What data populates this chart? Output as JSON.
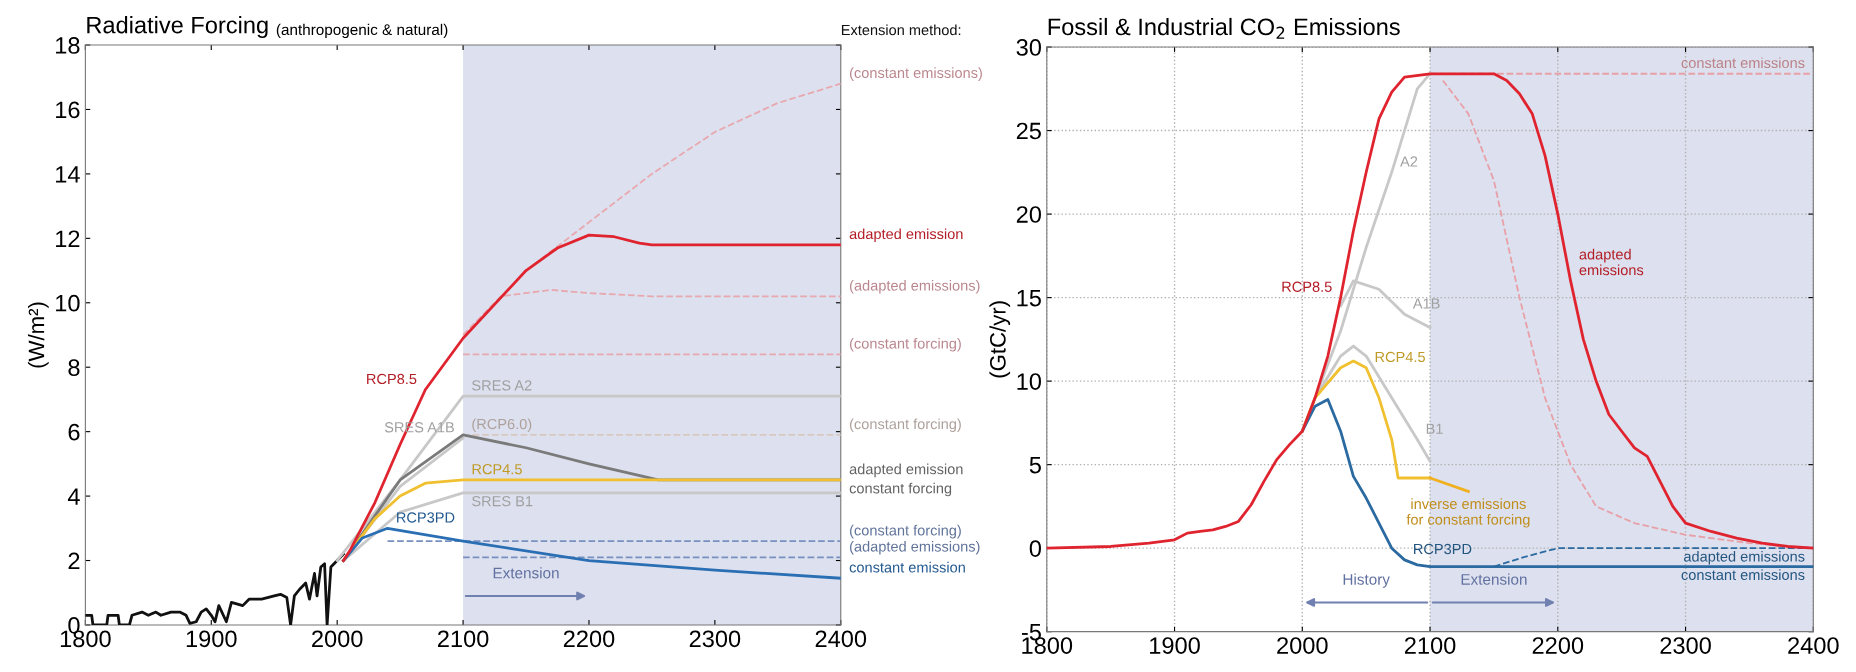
{
  "chart_data": [
    {
      "type": "line",
      "title": "Radiative Forcing",
      "subtitle": "(anthropogenic & natural)",
      "ylabel": "(W/m²)",
      "xlim": [
        1800,
        2400
      ],
      "ylim": [
        0,
        18
      ],
      "xticks": [
        1800,
        1900,
        2000,
        2100,
        2200,
        2300,
        2400
      ],
      "yticks": [
        0,
        2,
        4,
        6,
        8,
        10,
        12,
        14,
        16,
        18
      ],
      "grid": false,
      "bands": [
        {
          "axis": "x",
          "from": 2100,
          "to": 2400,
          "color": "#dde0ee",
          "label": "Extension"
        }
      ],
      "series": [
        {
          "color": "#111111",
          "x": [
            1800,
            1805,
            1806,
            1817,
            1818,
            1826,
            1827,
            1835,
            1837,
            1845,
            1850,
            1856,
            1860,
            1868,
            1875,
            1880,
            1883,
            1888,
            1892,
            1896,
            1900,
            1903,
            1906,
            1912,
            1916,
            1925,
            1930,
            1940,
            1950,
            1955,
            1960,
            1963,
            1966,
            1970,
            1975,
            1978,
            1982,
            1984,
            1987,
            1990,
            1992,
            1995,
            2000,
            2005
          ],
          "values": [
            0.3,
            0.3,
            0,
            0,
            0.3,
            0.3,
            0,
            0,
            0.3,
            0.4,
            0.3,
            0.4,
            0.3,
            0.4,
            0.4,
            0.3,
            0.05,
            0.1,
            0.4,
            0.5,
            0.3,
            0.1,
            0.6,
            0.1,
            0.7,
            0.6,
            0.8,
            0.8,
            0.9,
            0.95,
            0.85,
            0.0,
            0.9,
            1.1,
            1.3,
            0.8,
            1.6,
            0.9,
            1.8,
            1.9,
            0.0,
            1.8,
            2.0,
            2.2
          ]
        },
        {
          "color": "#e8a8b0",
          "line_style": "dashed",
          "x": [
            2150,
            2200,
            2250,
            2300,
            2350,
            2400
          ],
          "values": [
            11.0,
            12.5,
            14.0,
            15.3,
            16.2,
            16.8
          ]
        },
        {
          "color": "#e8a8b0",
          "line_style": "dashed",
          "x": [
            2100,
            2130,
            2170,
            2200,
            2250,
            2400
          ],
          "values": [
            9.0,
            10.2,
            10.4,
            10.3,
            10.2,
            10.2
          ]
        },
        {
          "color": "#e8a8b0",
          "line_style": "dashed",
          "x": [
            2100,
            2400
          ],
          "values": [
            8.4,
            8.4
          ]
        },
        {
          "color": "#c8c8c8",
          "x": [
            2000,
            2050,
            2100,
            2400
          ],
          "values": [
            2.0,
            4.5,
            7.1,
            7.1
          ]
        },
        {
          "color": "#d8c8c0",
          "line_style": "dashed",
          "x": [
            2100,
            2400
          ],
          "values": [
            5.9,
            5.9
          ]
        },
        {
          "color": "#c8c8c8",
          "x": [
            2005,
            2050,
            2100
          ],
          "values": [
            2.0,
            4.3,
            5.8
          ]
        },
        {
          "color": "#c8c8c8",
          "x": [
            2005,
            2050,
            2100,
            2400
          ],
          "values": [
            2.0,
            3.5,
            4.1,
            4.1
          ]
        },
        {
          "color": "#7a7a7a",
          "x": [
            2005,
            2050,
            2100,
            2150,
            2200,
            2255,
            2400
          ],
          "values": [
            2.0,
            4.5,
            5.9,
            5.5,
            5.0,
            4.5,
            4.5
          ]
        },
        {
          "color": "#f0c030",
          "x": [
            2005,
            2030,
            2050,
            2070,
            2100,
            2400
          ],
          "values": [
            2.0,
            3.3,
            4.0,
            4.4,
            4.5,
            4.5
          ]
        },
        {
          "color": "#7890c0",
          "line_style": "dashed",
          "x": [
            2040,
            2400
          ],
          "values": [
            2.6,
            2.6
          ]
        },
        {
          "color": "#7890c0",
          "line_style": "dashed",
          "x": [
            2100,
            2400
          ],
          "values": [
            2.1,
            2.1
          ]
        },
        {
          "color": "#2a6fb4",
          "x": [
            2005,
            2020,
            2040,
            2100,
            2200,
            2300,
            2400
          ],
          "values": [
            2.0,
            2.7,
            3.0,
            2.6,
            2.0,
            1.7,
            1.45
          ]
        },
        {
          "color": "#e0242f",
          "x": [
            2005,
            2010,
            2030,
            2050,
            2070,
            2100,
            2150,
            2175,
            2200,
            2220,
            2240,
            2250,
            2400
          ],
          "values": [
            2.0,
            2.3,
            3.8,
            5.6,
            7.3,
            8.9,
            11.0,
            11.7,
            12.1,
            12.05,
            11.85,
            11.8,
            11.8
          ]
        }
      ],
      "annotations": [
        "Extension method:",
        {
          "text": "(constant emissions)",
          "x": 2400,
          "y": 16.8
        },
        {
          "text": "adapted emission",
          "x": 2400,
          "y": 11.8
        },
        {
          "text": "(adapted emissions)",
          "x": 2400,
          "y": 10.2
        },
        {
          "text": "(constant forcing)",
          "x": 2400,
          "y": 8.4
        },
        {
          "text": "(constant forcing)",
          "x": 2400,
          "y": 5.9
        },
        {
          "text": "adapted emission",
          "x": 2400,
          "y": 4.5
        },
        {
          "text": "constant forcing",
          "x": 2400,
          "y": 4.5
        },
        {
          "text": "(constant forcing)",
          "x": 2400,
          "y": 2.6
        },
        {
          "text": "(adapted emissions)",
          "x": 2400,
          "y": 2.1
        },
        {
          "text": "constant emission",
          "x": 2400,
          "y": 1.45
        },
        {
          "text": "RCP8.5",
          "x": 2070,
          "y": 7.3
        },
        {
          "text": "SRES A2",
          "x": 2100,
          "y": 7.1
        },
        {
          "text": "(RCP6.0)",
          "x": 2100,
          "y": 5.9
        },
        {
          "text": "SRES A1B",
          "x": 2100,
          "y": 5.8
        },
        {
          "text": "RCP4.5",
          "x": 2100,
          "y": 4.5
        },
        {
          "text": "SRES B1",
          "x": 2100,
          "y": 4.1
        },
        {
          "text": "RCP3PD",
          "x": 2040,
          "y": 3.0
        }
      ]
    },
    {
      "type": "line",
      "title": "Fossil & Industrial CO$_{2}$ Emissions",
      "ylabel": "(GtC/yr)",
      "xlim": [
        1800,
        2400
      ],
      "ylim": [
        -5,
        30
      ],
      "xticks": [
        1800,
        1900,
        2000,
        2100,
        2200,
        2300,
        2400
      ],
      "yticks": [
        -5,
        0,
        5,
        10,
        15,
        20,
        25,
        30
      ],
      "grid": true,
      "bands": [
        {
          "axis": "x",
          "from": 2100,
          "to": 2400,
          "color": "#dde0ee",
          "label": "Extension"
        }
      ],
      "series": [
        {
          "color": "#e8a0a8",
          "line_style": "dashed",
          "x": [
            2100,
            2400
          ],
          "values": [
            28.4,
            28.4
          ]
        },
        {
          "color": "#2a6aa0",
          "line_style": "dashed",
          "x": [
            2150,
            2175,
            2200,
            2400
          ],
          "values": [
            -1.1,
            -0.5,
            0,
            0
          ]
        },
        {
          "color": "#e8a0a8",
          "line_style": "dashed",
          "x": [
            2110,
            2130,
            2150,
            2170,
            2190,
            2210,
            2230,
            2260,
            2300,
            2350,
            2400
          ],
          "values": [
            28.0,
            26.0,
            22.0,
            15.0,
            9.0,
            5.0,
            2.5,
            1.5,
            0.8,
            0.3,
            0.0
          ]
        },
        {
          "color": "#c8c8c8",
          "x": [
            2000,
            2030,
            2050,
            2070,
            2090,
            2100
          ],
          "values": [
            7.0,
            13,
            18,
            22.5,
            27.5,
            28.4
          ]
        },
        {
          "color": "#c8c8c8",
          "x": [
            2030,
            2040,
            2060,
            2080,
            2100
          ],
          "values": [
            14.5,
            16.0,
            15.5,
            14.0,
            13.2
          ]
        },
        {
          "color": "#c8c8c8",
          "x": [
            2010,
            2030,
            2040,
            2050,
            2070,
            2090,
            2100
          ],
          "values": [
            9,
            11.5,
            12.1,
            11.5,
            9,
            6.5,
            5.2
          ]
        },
        {
          "color": "#f0c030",
          "x": [
            2000,
            2010,
            2030,
            2040,
            2050,
            2060,
            2070,
            2075,
            2100
          ],
          "values": [
            7.0,
            9.0,
            10.8,
            11.2,
            10.8,
            9.0,
            6.5,
            4.2,
            4.2
          ]
        },
        {
          "color": "#f0b020",
          "x": [
            2100,
            2130
          ],
          "values": [
            4.2,
            3.4
          ]
        },
        {
          "color": "#2a6aa0",
          "x": [
            2000,
            2010,
            2020,
            2030,
            2040,
            2050,
            2060,
            2070,
            2080,
            2090,
            2100,
            2400
          ],
          "values": [
            7.0,
            8.5,
            8.9,
            7.0,
            4.3,
            3.0,
            1.5,
            0.0,
            -0.7,
            -1.0,
            -1.1,
            -1.1
          ]
        },
        {
          "color": "#e0242f",
          "x": [
            1800,
            1850,
            1880,
            1900,
            1910,
            1920,
            1930,
            1940,
            1950,
            1960,
            1970,
            1980,
            1990,
            2000,
            2010,
            2020,
            2030,
            2040,
            2050,
            2060,
            2070,
            2080,
            2100,
            2150,
            2160,
            2170,
            2180,
            2190,
            2200,
            2210,
            2220,
            2230,
            2240,
            2250,
            2260,
            2270,
            2280,
            2290,
            2300,
            2320,
            2340,
            2360,
            2380,
            2400
          ],
          "values": [
            0,
            0.1,
            0.3,
            0.5,
            0.9,
            1.0,
            1.1,
            1.3,
            1.6,
            2.6,
            4.0,
            5.3,
            6.2,
            7.0,
            9.0,
            11.5,
            15.0,
            19.0,
            22.5,
            25.7,
            27.3,
            28.2,
            28.4,
            28.4,
            28.0,
            27.2,
            26.0,
            23.5,
            20.0,
            16.0,
            12.5,
            10.0,
            8.0,
            7.0,
            6.0,
            5.5,
            4.0,
            2.5,
            1.5,
            1.0,
            0.6,
            0.3,
            0.1,
            0.0
          ]
        }
      ],
      "annotations": [
        "History",
        {
          "text": "RCP8.5",
          "x": 2030,
          "y": 15.0
        },
        {
          "text": "A2",
          "x": 2070,
          "y": 22.5
        },
        {
          "text": "A1B",
          "x": 2080,
          "y": 14.0
        },
        {
          "text": "RCP4.5",
          "x": 2050,
          "y": 10.8
        },
        {
          "text": "B1",
          "x": 2090,
          "y": 6.5
        },
        {
          "text": "RCP3PD",
          "x": 2080,
          "y": -0.7
        },
        {
          "text": "constant emissions",
          "x": 2400,
          "y": 28.4
        },
        {
          "text": "adapted\nemissions",
          "x": 2210,
          "y": 16.0
        },
        {
          "text": "inverse emissions\nfor constant forcing",
          "x": 2130,
          "y": 3.4
        },
        {
          "text": "adapted emissions",
          "x": 2400,
          "y": 0
        },
        {
          "text": "constant emissions",
          "x": 2400,
          "y": -1.1
        }
      ]
    }
  ]
}
